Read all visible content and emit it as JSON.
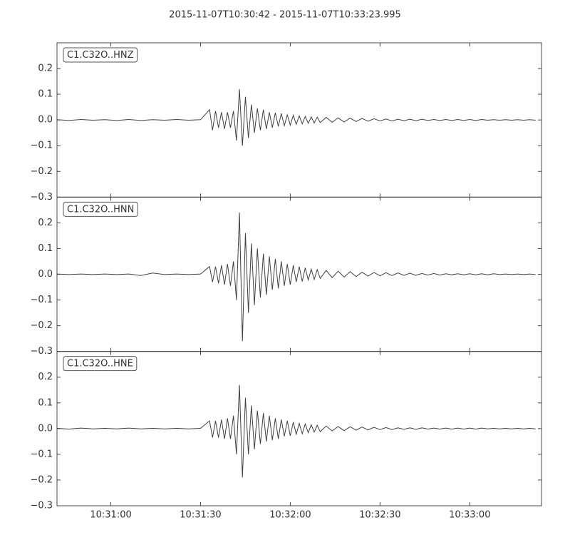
{
  "chart_data": {
    "type": "line",
    "title": "2015-11-07T10:30:42  -  2015-11-07T10:33:23.995",
    "x": [
      42,
      46,
      50,
      54,
      58,
      62,
      66,
      70,
      74,
      78,
      82,
      86,
      90,
      93,
      94,
      95,
      96,
      97,
      98,
      99,
      100,
      101,
      102,
      103,
      104,
      105,
      106,
      107,
      108,
      109,
      110,
      111,
      112,
      113,
      114,
      115,
      116,
      117,
      118,
      119,
      120,
      121,
      122,
      123,
      124,
      125,
      126,
      127,
      128,
      129,
      130,
      132,
      134,
      136,
      138,
      140,
      142,
      144,
      146,
      148,
      150,
      152,
      154,
      156,
      158,
      160,
      162,
      164,
      166,
      168,
      170,
      172,
      174,
      176,
      178,
      180,
      182,
      184,
      186,
      188,
      190,
      192,
      194,
      196,
      198,
      200,
      202
    ],
    "xlim": [
      42,
      203.995
    ],
    "xticks": [
      {
        "value": 60,
        "label": "10:31:00"
      },
      {
        "value": 90,
        "label": "10:31:30"
      },
      {
        "value": 120,
        "label": "10:32:00"
      },
      {
        "value": 150,
        "label": "10:32:30"
      },
      {
        "value": 180,
        "label": "10:33:00"
      }
    ],
    "ylim": [
      -0.3,
      0.3
    ],
    "yticks": [
      {
        "value": -0.3,
        "label": "−0.3"
      },
      {
        "value": -0.2,
        "label": "−0.2"
      },
      {
        "value": -0.1,
        "label": "−0.1"
      },
      {
        "value": 0,
        "label": "0.0"
      },
      0.1,
      0.2
    ],
    "series": [
      {
        "name": "C1.C32O..HNZ",
        "color": "#404040",
        "values": [
          0.001,
          -0.002,
          0.002,
          -0.001,
          0.001,
          -0.002,
          0.002,
          -0.002,
          0.001,
          -0.001,
          0.002,
          -0.001,
          0.001,
          0.04,
          -0.04,
          0.035,
          -0.03,
          0.03,
          -0.035,
          0.03,
          -0.03,
          0.035,
          -0.08,
          0.12,
          -0.1,
          0.09,
          -0.07,
          0.06,
          -0.05,
          0.045,
          -0.04,
          0.04,
          -0.035,
          0.03,
          -0.03,
          0.028,
          -0.025,
          0.025,
          -0.022,
          0.02,
          -0.02,
          0.018,
          -0.017,
          0.016,
          -0.015,
          0.014,
          -0.013,
          0.012,
          -0.012,
          0.011,
          -0.01,
          0.01,
          -0.009,
          0.008,
          -0.008,
          0.007,
          -0.006,
          0.006,
          -0.005,
          0.005,
          -0.004,
          0.004,
          -0.004,
          0.003,
          -0.003,
          0.003,
          -0.003,
          0.003,
          -0.002,
          0.002,
          -0.002,
          0.002,
          -0.002,
          0.002,
          -0.002,
          0.002,
          -0.002,
          0.002,
          -0.001,
          0.001,
          -0.001,
          0.001,
          -0.001,
          0.001,
          -0.001,
          0.001,
          -0.001
        ]
      },
      {
        "name": "C1.C32O..HNN",
        "color": "#404040",
        "values": [
          0.001,
          -0.001,
          0.001,
          -0.001,
          0.001,
          -0.001,
          0.001,
          -0.005,
          0.005,
          -0.001,
          0.001,
          -0.001,
          0.001,
          0.03,
          -0.03,
          0.03,
          -0.035,
          0.035,
          -0.04,
          0.04,
          -0.045,
          0.05,
          -0.1,
          0.24,
          -0.26,
          0.16,
          -0.15,
          0.12,
          -0.12,
          0.1,
          -0.09,
          0.08,
          -0.08,
          0.07,
          -0.06,
          0.06,
          -0.055,
          0.05,
          -0.045,
          0.04,
          -0.04,
          0.035,
          -0.03,
          0.03,
          -0.028,
          0.025,
          -0.022,
          0.02,
          -0.02,
          0.018,
          -0.016,
          0.015,
          -0.013,
          0.012,
          -0.011,
          0.01,
          -0.009,
          0.008,
          -0.007,
          0.007,
          -0.006,
          0.006,
          -0.005,
          0.005,
          -0.004,
          0.004,
          -0.004,
          0.003,
          -0.003,
          0.003,
          -0.003,
          0.002,
          -0.002,
          0.002,
          -0.002,
          0.002,
          -0.002,
          0.002,
          -0.002,
          0.002,
          -0.001,
          0.001,
          -0.001,
          0.001,
          -0.001,
          0.001,
          -0.001
        ]
      },
      {
        "name": "C1.C32O..HNE",
        "color": "#404040",
        "values": [
          0.001,
          -0.002,
          0.002,
          -0.001,
          0.001,
          -0.001,
          0.002,
          -0.001,
          0.001,
          -0.001,
          0.001,
          -0.001,
          0.001,
          0.03,
          -0.035,
          0.03,
          -0.035,
          0.035,
          -0.04,
          0.04,
          -0.04,
          0.05,
          -0.1,
          0.17,
          -0.19,
          0.12,
          -0.1,
          0.09,
          -0.08,
          0.07,
          -0.06,
          0.06,
          -0.05,
          0.05,
          -0.045,
          0.04,
          -0.04,
          0.035,
          -0.03,
          0.03,
          -0.028,
          0.025,
          -0.022,
          0.02,
          -0.02,
          0.018,
          -0.016,
          0.015,
          -0.014,
          0.013,
          -0.012,
          0.01,
          -0.009,
          0.008,
          -0.008,
          0.007,
          -0.006,
          0.006,
          -0.005,
          0.005,
          -0.004,
          0.004,
          -0.004,
          0.003,
          -0.003,
          0.003,
          -0.003,
          0.003,
          -0.002,
          0.002,
          -0.002,
          0.002,
          -0.002,
          0.002,
          -0.002,
          0.002,
          -0.002,
          0.002,
          -0.001,
          0.001,
          -0.001,
          0.001,
          -0.001,
          0.001,
          -0.001,
          0.001,
          -0.001
        ]
      }
    ]
  }
}
